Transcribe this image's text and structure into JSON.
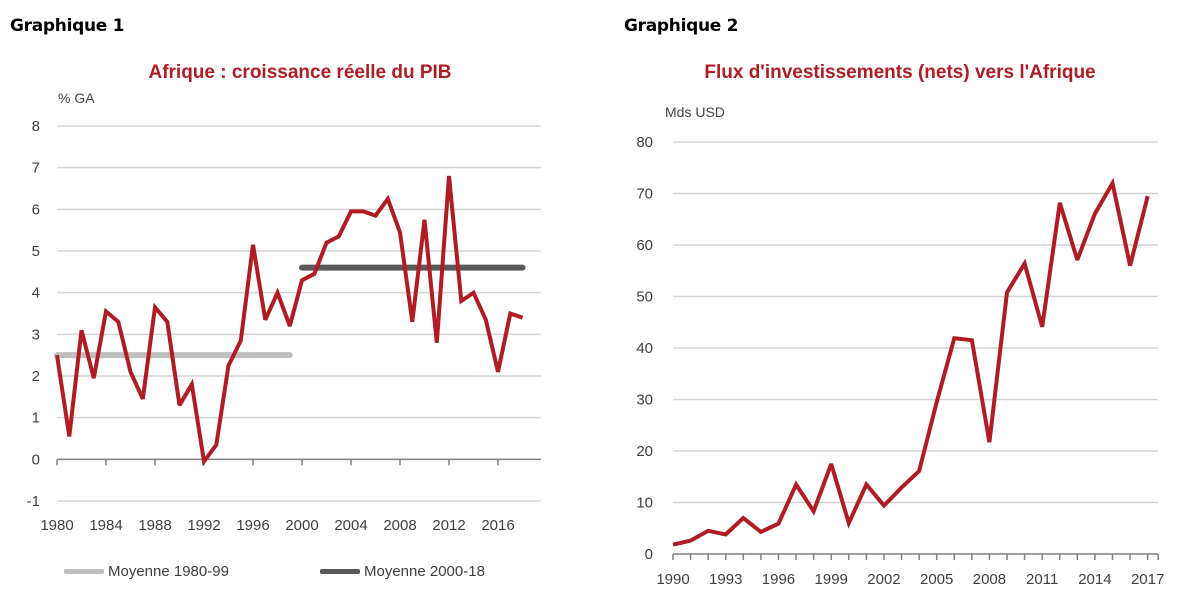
{
  "chart_data": [
    {
      "type": "line",
      "heading": "Graphique 1",
      "title": "Afrique : croissance réelle du PIB",
      "ylabel": "% GA",
      "xlabel": "",
      "ylim": [
        -1,
        8
      ],
      "yticks": [
        "8",
        "7",
        "6",
        "5",
        "4",
        "3",
        "2",
        "1",
        "0",
        "-1"
      ],
      "xticks": [
        "1980",
        "1984",
        "1988",
        "1992",
        "1996",
        "2000",
        "2004",
        "2008",
        "2012",
        "2016"
      ],
      "grid": true,
      "legend_position": "bottom",
      "x": [
        1980,
        1981,
        1982,
        1983,
        1984,
        1985,
        1986,
        1987,
        1988,
        1989,
        1990,
        1991,
        1992,
        1993,
        1994,
        1995,
        1996,
        1997,
        1998,
        1999,
        2000,
        2001,
        2002,
        2003,
        2004,
        2005,
        2006,
        2007,
        2008,
        2009,
        2010,
        2011,
        2012,
        2013,
        2014,
        2015,
        2016,
        2017,
        2018
      ],
      "series": [
        {
          "name": "Croissance réelle du PIB",
          "color": "#b01c22",
          "values": [
            2.5,
            0.55,
            3.1,
            1.95,
            3.55,
            3.3,
            2.1,
            1.45,
            3.65,
            3.3,
            1.3,
            1.8,
            -0.05,
            0.35,
            2.25,
            2.85,
            5.15,
            3.35,
            4.0,
            3.2,
            4.3,
            4.45,
            5.2,
            5.35,
            5.95,
            5.95,
            5.85,
            6.25,
            5.45,
            3.3,
            5.75,
            2.8,
            6.8,
            3.8,
            4.0,
            3.35,
            2.1,
            3.5,
            3.4
          ]
        }
      ],
      "averages": [
        {
          "name": "Moyenne 1980-99",
          "label": "Moyenne 1980-99",
          "value": 2.5,
          "from": 1980,
          "to": 1999,
          "color": "#bfbfbf"
        },
        {
          "name": "Moyenne 2000-18",
          "label": "Moyenne 2000-18",
          "value": 4.6,
          "from": 2000,
          "to": 2018,
          "color": "#595959"
        }
      ]
    },
    {
      "type": "line",
      "heading": "Graphique 2",
      "title": "Flux d'investissements (nets) vers l'Afrique",
      "ylabel": "Mds USD",
      "xlabel": "",
      "ylim": [
        0,
        80
      ],
      "yticks": [
        "80",
        "70",
        "60",
        "50",
        "40",
        "30",
        "20",
        "10",
        "0"
      ],
      "xticks": [
        "1990",
        "1993",
        "1996",
        "1999",
        "2002",
        "2005",
        "2008",
        "2011",
        "2014",
        "2017"
      ],
      "grid": true,
      "x": [
        1990,
        1991,
        1992,
        1993,
        1994,
        1995,
        1996,
        1997,
        1998,
        1999,
        2000,
        2001,
        2002,
        2003,
        2004,
        2005,
        2006,
        2007,
        2008,
        2009,
        2010,
        2011,
        2012,
        2013,
        2014,
        2015,
        2016,
        2017
      ],
      "series": [
        {
          "name": "Flux d'investissements nets",
          "color": "#b01c22",
          "values": [
            1.8,
            2.6,
            4.5,
            3.8,
            7.0,
            4.3,
            5.9,
            13.5,
            8.3,
            17.5,
            6.0,
            13.5,
            9.4,
            12.9,
            16.1,
            29.5,
            41.9,
            41.5,
            21.7,
            50.8,
            56.4,
            44.1,
            68.2,
            57.1,
            66.1,
            72.0,
            56.0,
            69.5
          ]
        }
      ]
    }
  ]
}
